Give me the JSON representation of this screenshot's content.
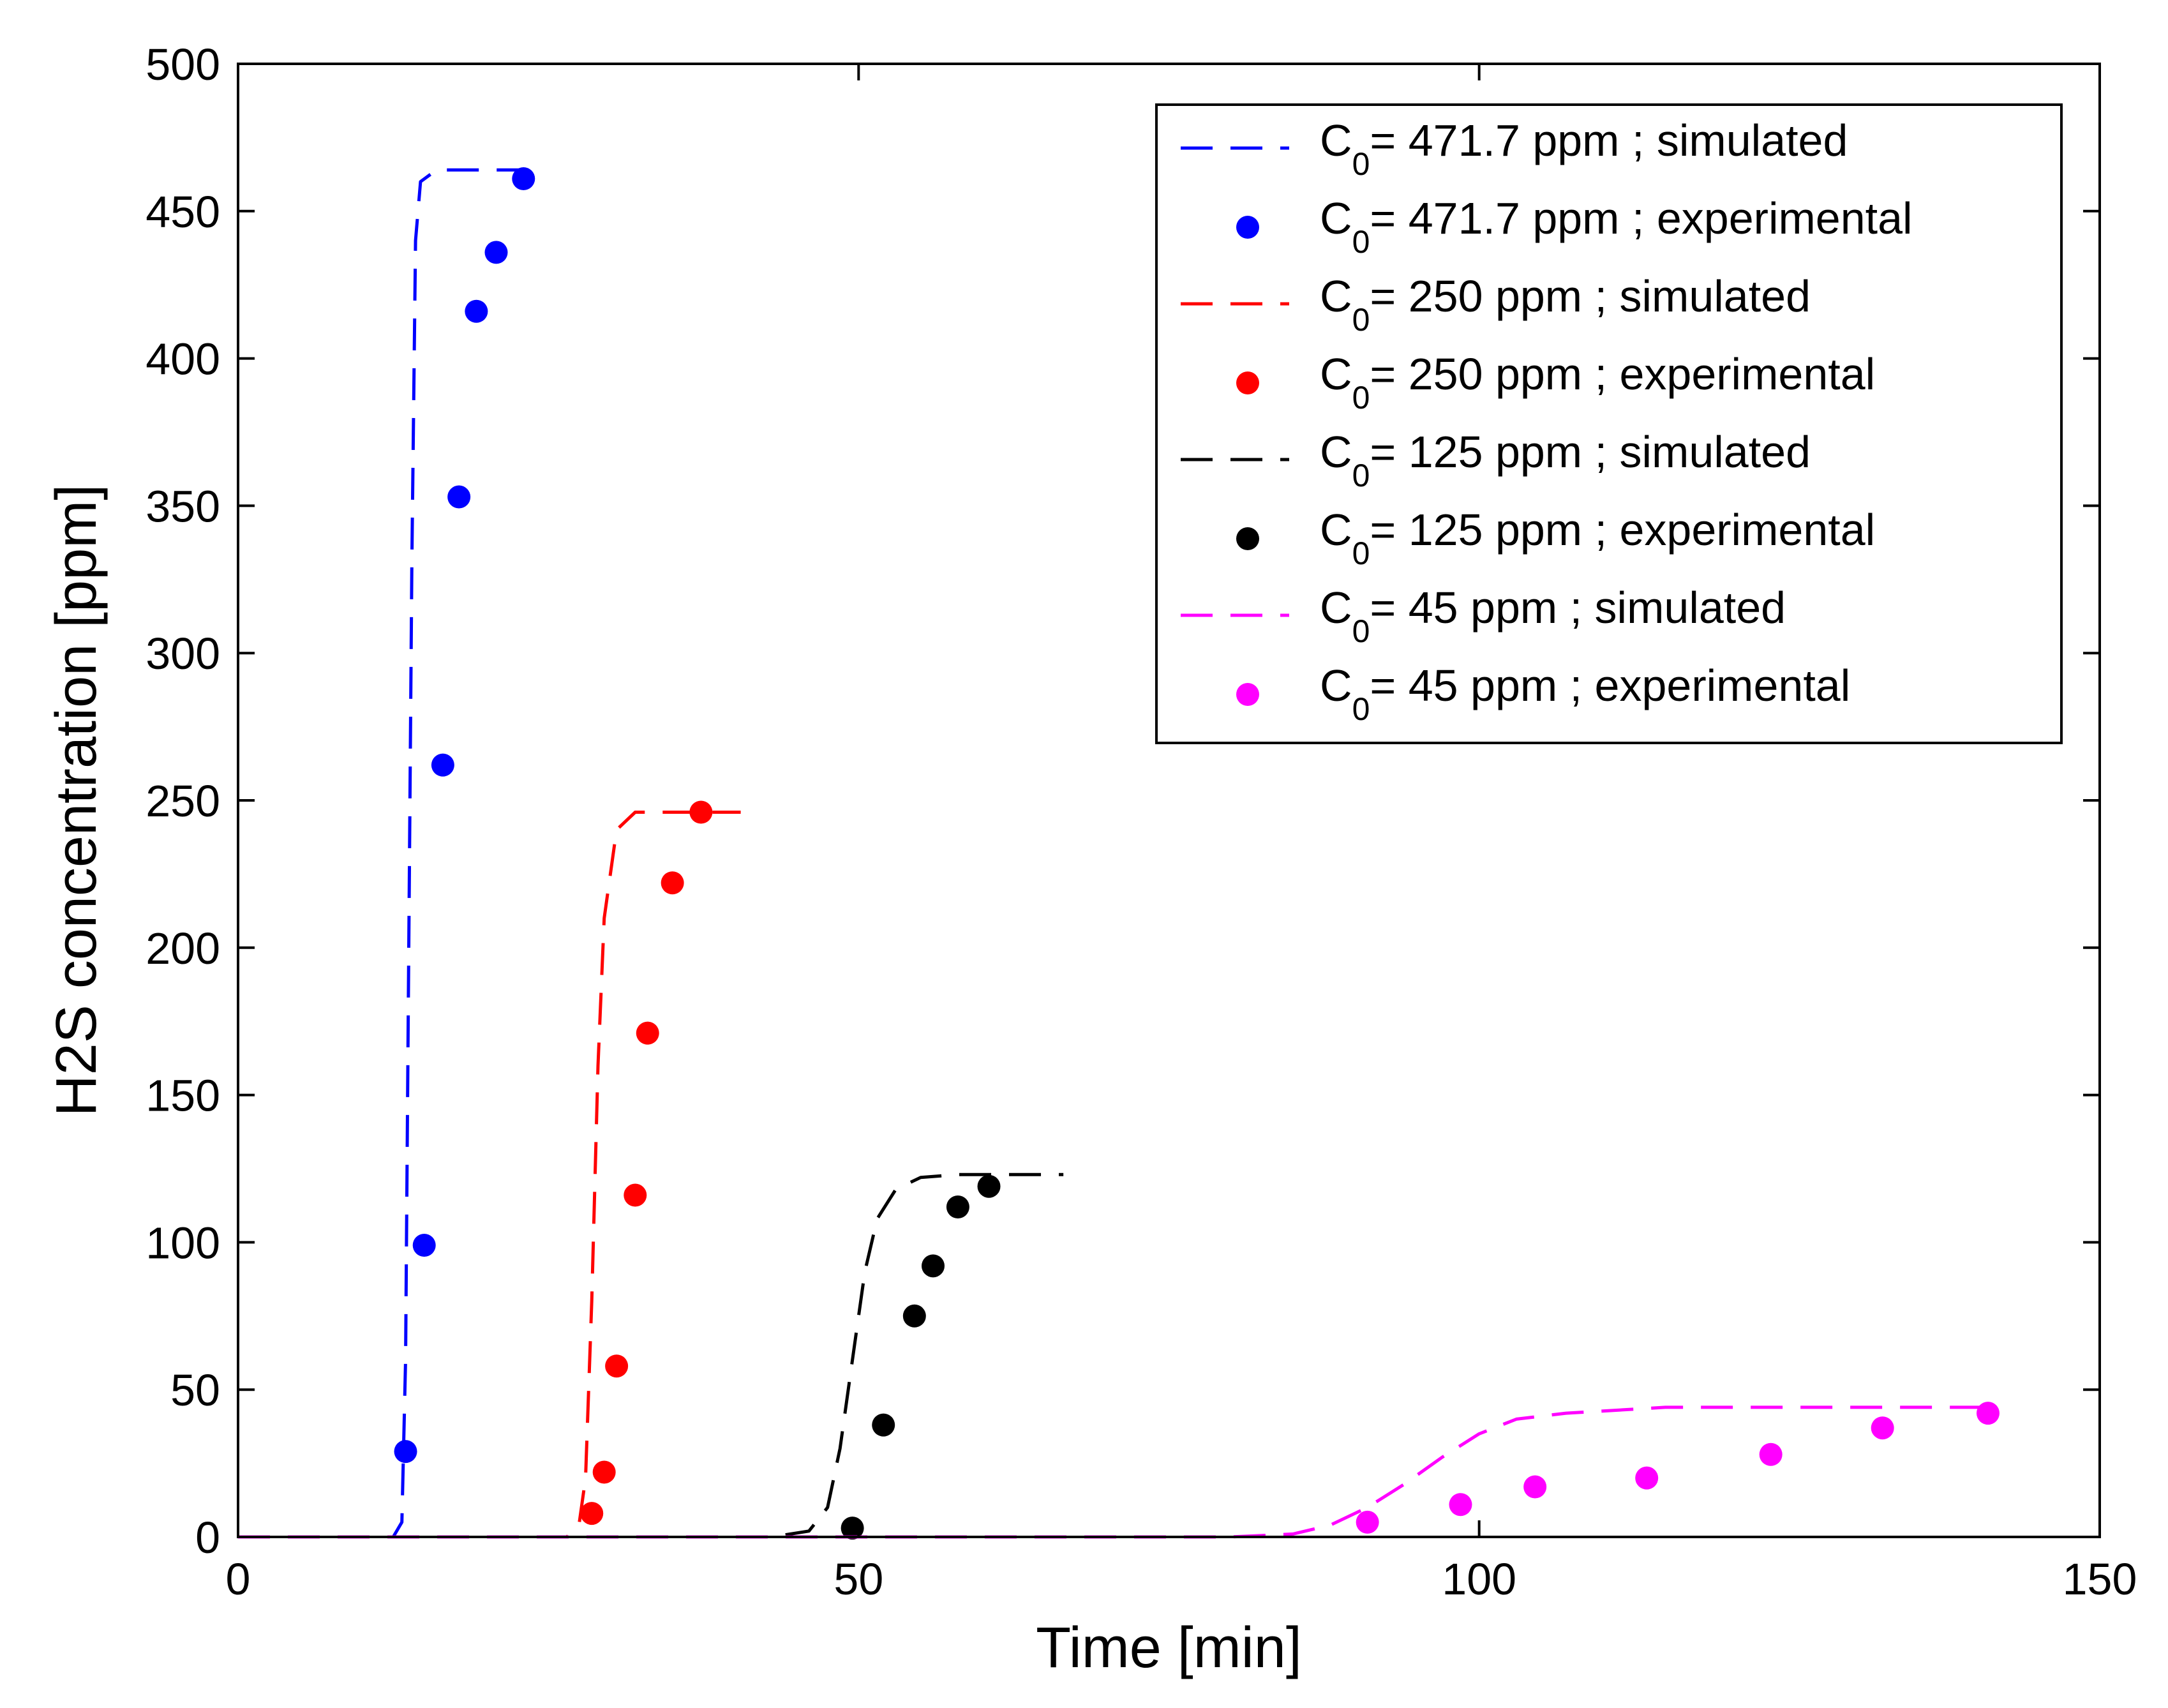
{
  "chart_data": {
    "type": "line",
    "xlabel": "Time [min]",
    "ylabel": "H2S concentration [ppm]",
    "xlim": [
      0,
      150
    ],
    "ylim": [
      0,
      500
    ],
    "xticks": [
      0,
      50,
      100,
      150
    ],
    "yticks": [
      0,
      50,
      100,
      150,
      200,
      250,
      300,
      350,
      400,
      450,
      500
    ],
    "grid": false,
    "legend_position": "top-right",
    "series": [
      {
        "name": "C0= 471.7 ppm ; simulated",
        "legend": {
          "pre": "C",
          "sub": "0",
          "post": "= 471.7 ppm ; simulated"
        },
        "kind": "line",
        "style": "dashed",
        "color": "#0000ff",
        "x": [
          0,
          12.5,
          13.2,
          13.5,
          13.7,
          14.0,
          14.3,
          14.7,
          16.0,
          24.5
        ],
        "y": [
          0,
          0,
          5,
          60,
          170,
          330,
          440,
          460,
          464,
          464
        ]
      },
      {
        "name": "C0= 471.7 ppm ; experimental",
        "legend": {
          "pre": "C",
          "sub": "0",
          "post": "= 471.7 ppm ; experimental"
        },
        "kind": "scatter",
        "color": "#0000ff",
        "x": [
          13.5,
          15.0,
          16.5,
          17.8,
          19.2,
          20.8,
          23.0
        ],
        "y": [
          29,
          99,
          262,
          353,
          416,
          436,
          461
        ]
      },
      {
        "name": "C0= 250 ppm ; simulated",
        "legend": {
          "pre": "C",
          "sub": "0",
          "post": "= 250 ppm ; simulated"
        },
        "kind": "line",
        "style": "dashed",
        "color": "#ff0000",
        "x": [
          0,
          26.5,
          27.5,
          28.0,
          28.5,
          29.0,
          29.5,
          30.5,
          32.0,
          40.5
        ],
        "y": [
          0,
          0,
          5,
          20,
          80,
          160,
          210,
          240,
          246,
          246
        ]
      },
      {
        "name": "C0= 250 ppm ; experimental",
        "legend": {
          "pre": "C",
          "sub": "0",
          "post": "= 250 ppm ; experimental"
        },
        "kind": "scatter",
        "color": "#ff0000",
        "x": [
          28.5,
          29.5,
          30.5,
          32.0,
          33.0,
          35.0,
          37.3
        ],
        "y": [
          8,
          22,
          58,
          116,
          171,
          222,
          246
        ]
      },
      {
        "name": "C0= 125 ppm ; simulated",
        "legend": {
          "pre": "C",
          "sub": "0",
          "post": "= 125 ppm ; simulated"
        },
        "kind": "line",
        "style": "dashed",
        "color": "#000000",
        "x": [
          0,
          43.0,
          46.0,
          47.5,
          48.5,
          49.5,
          50.5,
          51.5,
          53.0,
          55.0,
          58.0,
          66.5
        ],
        "y": [
          0,
          0,
          2,
          10,
          30,
          60,
          90,
          108,
          118,
          122,
          123,
          123
        ]
      },
      {
        "name": "C0= 125 ppm ; experimental",
        "legend": {
          "pre": "C",
          "sub": "0",
          "post": "= 125 ppm ; experimental"
        },
        "kind": "scatter",
        "color": "#000000",
        "x": [
          49.5,
          52.0,
          54.5,
          56.0,
          58.0,
          60.5
        ],
        "y": [
          3,
          38,
          75,
          92,
          112,
          119
        ]
      },
      {
        "name": "C0= 45 ppm ; simulated",
        "legend": {
          "pre": "C",
          "sub": "0",
          "post": "= 45 ppm ; simulated"
        },
        "kind": "line",
        "style": "dashed",
        "color": "#ff00ff",
        "x": [
          0,
          80.0,
          85.0,
          88.0,
          91.0,
          94.0,
          97.0,
          100.0,
          103.0,
          107.0,
          115.0,
          141.0
        ],
        "y": [
          0,
          0,
          1,
          4,
          10,
          18,
          27,
          35,
          40,
          42,
          44,
          44
        ]
      },
      {
        "name": "C0= 45 ppm ; experimental",
        "legend": {
          "pre": "C",
          "sub": "0",
          "post": "= 45 ppm ; experimental"
        },
        "kind": "scatter",
        "color": "#ff00ff",
        "x": [
          91.0,
          98.5,
          104.5,
          113.5,
          123.5,
          132.5,
          141.0
        ],
        "y": [
          5,
          11,
          17,
          20,
          28,
          37,
          42
        ]
      }
    ]
  }
}
